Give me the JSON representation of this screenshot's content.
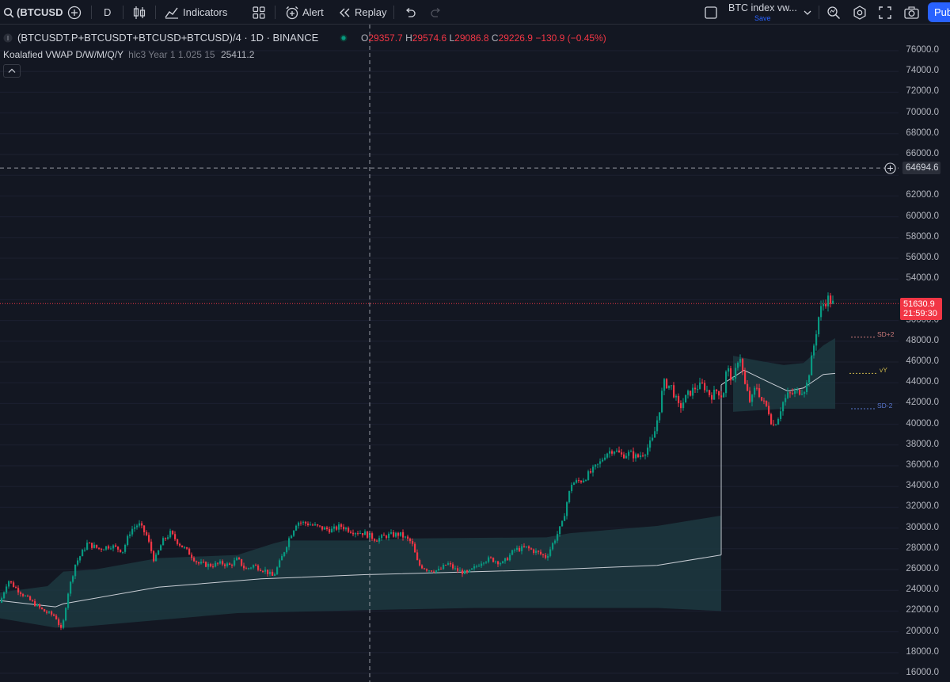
{
  "toolbar": {
    "symbol": "(BTCUSD",
    "interval": "D",
    "indicators_label": "Indicators",
    "alert_label": "Alert",
    "replay_label": "Replay",
    "layout_name": "BTC index vw...",
    "layout_status": "Save",
    "publish_label": "Pub"
  },
  "legend": {
    "symbol_title": "(BTCUSDT.P+BTCUSDT+BTCUSD+BTCUSD)/4 · 1D · BINANCE",
    "o_label": "O",
    "o": "29357.7",
    "h_label": "H",
    "h": "29574.6",
    "l_label": "L",
    "l": "29086.8",
    "c_label": "C",
    "c": "29226.9",
    "change": "−130.9 (−0.45%)"
  },
  "indicator": {
    "name": "Koalafied VWAP D/W/M/Q/Y",
    "params": "hlc3 Year 1 1.025 15",
    "value": "25411.2"
  },
  "price_axis": {
    "ticks": [
      "76000.0",
      "74000.0",
      "72000.0",
      "70000.0",
      "68000.0",
      "66000.0",
      "62000.0",
      "60000.0",
      "58000.0",
      "56000.0",
      "54000.0",
      "50000.0",
      "48000.0",
      "46000.0",
      "44000.0",
      "42000.0",
      "40000.0",
      "38000.0",
      "36000.0",
      "34000.0",
      "32000.0",
      "30000.0",
      "28000.0",
      "26000.0",
      "24000.0",
      "22000.0",
      "20000.0",
      "18000.0",
      "16000.0"
    ],
    "crosshair_price": "64694.6",
    "last_price": "51630.9",
    "countdown": "21:59:30"
  },
  "band_labels": {
    "upper": "SD+2",
    "mid": "vY",
    "lower": "SD-2"
  },
  "colors": {
    "background": "#131722",
    "up": "#089981",
    "down": "#f23645",
    "band_fill": "#1d3b43",
    "vwap_line": "#c8cdd4",
    "accent": "#2962ff"
  },
  "chart_data": {
    "type": "candlestick",
    "ylim": [
      15500,
      77500
    ],
    "last_close": 51630.9,
    "crosshair_price": 64694.6,
    "close_path": [
      [
        0,
        22800
      ],
      [
        10,
        25000
      ],
      [
        20,
        24200
      ],
      [
        35,
        23200
      ],
      [
        55,
        22000
      ],
      [
        70,
        21500
      ],
      [
        78,
        20000
      ],
      [
        85,
        23500
      ],
      [
        95,
        26500
      ],
      [
        110,
        28500
      ],
      [
        125,
        28000
      ],
      [
        140,
        28300
      ],
      [
        155,
        27800
      ],
      [
        165,
        29800
      ],
      [
        175,
        30400
      ],
      [
        185,
        29300
      ],
      [
        195,
        26800
      ],
      [
        205,
        28700
      ],
      [
        215,
        29500
      ],
      [
        225,
        28600
      ],
      [
        240,
        27500
      ],
      [
        250,
        26600
      ],
      [
        265,
        26400
      ],
      [
        280,
        26600
      ],
      [
        290,
        26400
      ],
      [
        300,
        27000
      ],
      [
        310,
        26000
      ],
      [
        320,
        26400
      ],
      [
        335,
        25900
      ],
      [
        345,
        25300
      ],
      [
        355,
        27000
      ],
      [
        365,
        29000
      ],
      [
        375,
        30600
      ],
      [
        390,
        30400
      ],
      [
        405,
        30000
      ],
      [
        420,
        29800
      ],
      [
        430,
        30200
      ],
      [
        445,
        29700
      ],
      [
        460,
        29500
      ],
      [
        475,
        28900
      ],
      [
        490,
        29300
      ],
      [
        505,
        29400
      ],
      [
        520,
        28600
      ],
      [
        528,
        26500
      ],
      [
        540,
        26000
      ],
      [
        555,
        25900
      ],
      [
        565,
        26600
      ],
      [
        575,
        26000
      ],
      [
        590,
        25600
      ],
      [
        600,
        26200
      ],
      [
        610,
        26900
      ],
      [
        620,
        27000
      ],
      [
        635,
        26600
      ],
      [
        650,
        27900
      ],
      [
        665,
        28100
      ],
      [
        680,
        27600
      ],
      [
        690,
        27200
      ],
      [
        700,
        28800
      ],
      [
        710,
        30400
      ],
      [
        716,
        32500
      ],
      [
        722,
        34300
      ],
      [
        735,
        34600
      ],
      [
        748,
        35500
      ],
      [
        758,
        36300
      ],
      [
        765,
        37200
      ],
      [
        775,
        37600
      ],
      [
        785,
        37000
      ],
      [
        795,
        37200
      ],
      [
        805,
        36800
      ],
      [
        815,
        37400
      ],
      [
        825,
        38600
      ],
      [
        833,
        41500
      ],
      [
        838,
        44000
      ],
      [
        848,
        43600
      ],
      [
        858,
        41500
      ],
      [
        868,
        42800
      ],
      [
        878,
        43500
      ],
      [
        888,
        43800
      ],
      [
        898,
        42700
      ],
      [
        906,
        43300
      ],
      [
        913,
        42600
      ],
      [
        918,
        45500
      ],
      [
        926,
        44000
      ],
      [
        934,
        47000
      ],
      [
        940,
        44000
      ],
      [
        948,
        42000
      ],
      [
        955,
        43800
      ],
      [
        962,
        42300
      ],
      [
        970,
        41500
      ],
      [
        976,
        39800
      ],
      [
        982,
        40500
      ],
      [
        988,
        42000
      ],
      [
        995,
        42800
      ],
      [
        1002,
        43000
      ],
      [
        1010,
        43200
      ],
      [
        1018,
        43500
      ],
      [
        1024,
        45800
      ],
      [
        1030,
        48500
      ],
      [
        1035,
        50800
      ],
      [
        1040,
        51600
      ],
      [
        1046,
        52100
      ],
      [
        1052,
        51630
      ]
    ],
    "vwap_segment_1": [
      [
        0,
        23000
      ],
      [
        70,
        22400
      ],
      [
        80,
        22700
      ],
      [
        200,
        24300
      ],
      [
        330,
        25100
      ],
      [
        460,
        25500
      ],
      [
        560,
        25700
      ],
      [
        700,
        26000
      ],
      [
        830,
        26400
      ],
      [
        911,
        27400
      ]
    ],
    "vwap_segment_2": [
      [
        911,
        43800
      ],
      [
        940,
        45200
      ],
      [
        970,
        44100
      ],
      [
        995,
        43200
      ],
      [
        1015,
        43500
      ],
      [
        1040,
        44800
      ],
      [
        1055,
        44900
      ]
    ],
    "band_upper_1": [
      [
        0,
        23800
      ],
      [
        60,
        24400
      ],
      [
        80,
        25800
      ],
      [
        120,
        26000
      ],
      [
        200,
        27100
      ],
      [
        300,
        27400
      ],
      [
        345,
        28500
      ],
      [
        360,
        28800
      ],
      [
        460,
        28800
      ],
      [
        520,
        29000
      ],
      [
        690,
        29100
      ],
      [
        720,
        29500
      ],
      [
        830,
        30200
      ],
      [
        911,
        31200
      ]
    ],
    "band_lower_1": [
      [
        0,
        21300
      ],
      [
        70,
        20400
      ],
      [
        90,
        20400
      ],
      [
        300,
        21800
      ],
      [
        470,
        22100
      ],
      [
        600,
        22300
      ],
      [
        830,
        22300
      ],
      [
        911,
        22000
      ]
    ],
    "band_upper_2": [
      [
        926,
        46600
      ],
      [
        960,
        46100
      ],
      [
        990,
        45700
      ],
      [
        1015,
        45900
      ],
      [
        1040,
        47600
      ],
      [
        1055,
        48300
      ]
    ],
    "band_lower_2": [
      [
        926,
        41200
      ],
      [
        990,
        41500
      ],
      [
        1055,
        41500
      ]
    ]
  }
}
